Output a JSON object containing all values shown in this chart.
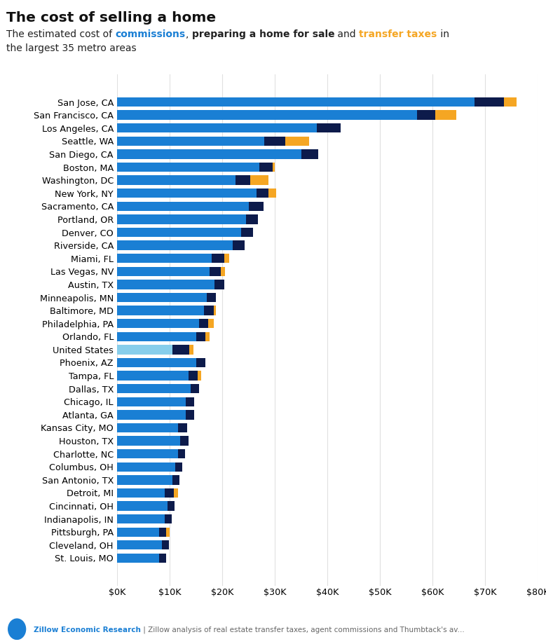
{
  "title": "The cost of selling a home",
  "subtitle_line1": [
    [
      "The estimated cost of ",
      "#222222",
      false
    ],
    [
      "commissions",
      "#1a7fd4",
      true
    ],
    [
      ", ",
      "#222222",
      false
    ],
    [
      "preparing a home for sale",
      "#222222",
      true
    ],
    [
      " and ",
      "#222222",
      false
    ],
    [
      "transfer taxes",
      "#f5a623",
      true
    ],
    [
      " in",
      "#222222",
      false
    ]
  ],
  "subtitle_line2": [
    [
      "the largest 35 metro areas",
      "#222222",
      false
    ]
  ],
  "categories": [
    "San Jose, CA",
    "San Francisco, CA",
    "Los Angeles, CA",
    "Seattle, WA",
    "San Diego, CA",
    "Boston, MA",
    "Washington, DC",
    "New York, NY",
    "Sacramento, CA",
    "Portland, OR",
    "Denver, CO",
    "Riverside, CA",
    "Miami, FL",
    "Las Vegas, NV",
    "Austin, TX",
    "Minneapolis, MN",
    "Baltimore, MD",
    "Philadelphia, PA",
    "Orlando, FL",
    "United States",
    "Phoenix, AZ",
    "Tampa, FL",
    "Dallas, TX",
    "Chicago, IL",
    "Atlanta, GA",
    "Kansas City, MO",
    "Houston, TX",
    "Charlotte, NC",
    "Columbus, OH",
    "San Antonio, TX",
    "Detroit, MI",
    "Cincinnati, OH",
    "Indianapolis, IN",
    "Pittsburgh, PA",
    "Cleveland, OH",
    "St. Louis, MO"
  ],
  "commissions": [
    68000,
    57000,
    38000,
    28000,
    35000,
    27000,
    22500,
    26500,
    25000,
    24500,
    23500,
    22000,
    18000,
    17500,
    18500,
    17000,
    16500,
    15500,
    15000,
    10500,
    15000,
    13500,
    14000,
    13000,
    13000,
    11500,
    12000,
    11500,
    11000,
    10500,
    9000,
    9500,
    9000,
    8000,
    8500,
    8000
  ],
  "prep": [
    5500,
    3500,
    4500,
    4000,
    3200,
    2500,
    2800,
    2200,
    2800,
    2300,
    2300,
    2200,
    2300,
    2200,
    1800,
    1800,
    1800,
    1800,
    1800,
    3200,
    1800,
    1800,
    1600,
    1600,
    1600,
    1800,
    1600,
    1400,
    1400,
    1300,
    1800,
    1400,
    1300,
    1300,
    1300,
    1300
  ],
  "transfer": [
    2500,
    4000,
    0,
    4500,
    0,
    500,
    3500,
    1500,
    0,
    0,
    0,
    0,
    1000,
    800,
    0,
    0,
    500,
    1000,
    800,
    800,
    0,
    700,
    0,
    0,
    0,
    0,
    0,
    0,
    0,
    0,
    700,
    0,
    0,
    600,
    0,
    0
  ],
  "bar_color_commission": "#1a7fd4",
  "bar_color_commission_us": "#87ceeb",
  "bar_color_prep": "#0d1b4b",
  "bar_color_transfer": "#f5a623",
  "footer_bold": "Zillow Economic Research",
  "footer_rest": " | Zillow analysis of real estate transfer taxes, agent commissions and Thumbtack's av...",
  "footer_color_bold": "#1a7fd4",
  "footer_color_rest": "#666666",
  "xlim": 80000,
  "xticks": [
    0,
    10000,
    20000,
    30000,
    40000,
    50000,
    60000,
    70000,
    80000
  ],
  "xtick_labels": [
    "$0K",
    "$10K",
    "$20K",
    "$30K",
    "$40K",
    "$50K",
    "$60K",
    "$70K",
    "$80K"
  ]
}
